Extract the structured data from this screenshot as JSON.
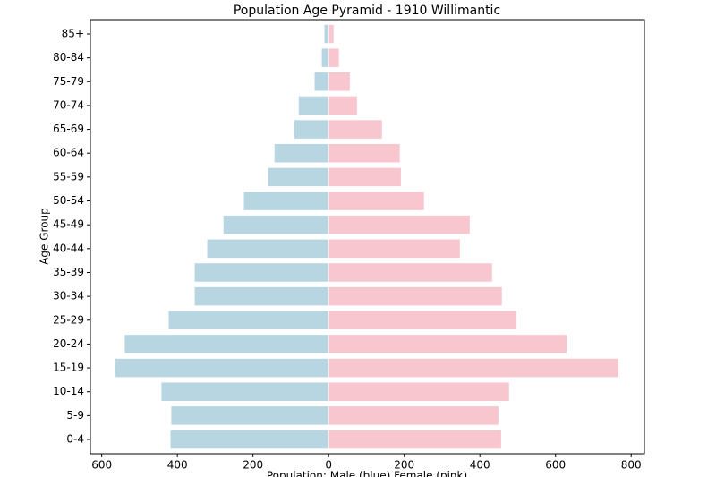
{
  "chart_data": {
    "type": "pyramid",
    "title": "Population Age Pyramid - 1910 Willimantic",
    "x_label": "Population: Male (blue) Female (pink)",
    "y_label": "Age Group",
    "categories": [
      "0-4",
      "5-9",
      "10-14",
      "15-19",
      "20-24",
      "25-29",
      "30-34",
      "35-39",
      "40-44",
      "45-49",
      "50-54",
      "55-59",
      "60-64",
      "65-69",
      "70-74",
      "75-79",
      "80-84",
      "85+"
    ],
    "series": [
      {
        "color": "#b7d6e1",
        "values": [
          -419,
          -417,
          -443,
          -566,
          -540,
          -424,
          -355,
          -355,
          -322,
          -279,
          -225,
          -161,
          -144,
          -92,
          -80,
          -38,
          -19,
          -12
        ]
      },
      {
        "color": "#f7c6cf",
        "values": [
          457,
          450,
          478,
          767,
          630,
          497,
          459,
          433,
          348,
          374,
          253,
          192,
          189,
          142,
          76,
          57,
          28,
          14
        ]
      }
    ],
    "xlim": [
      -630,
      835
    ],
    "xticks": [
      {
        "value": -600,
        "label": "600"
      },
      {
        "value": -400,
        "label": "400"
      },
      {
        "value": -200,
        "label": "200"
      },
      0,
      200,
      400,
      600,
      800
    ]
  }
}
